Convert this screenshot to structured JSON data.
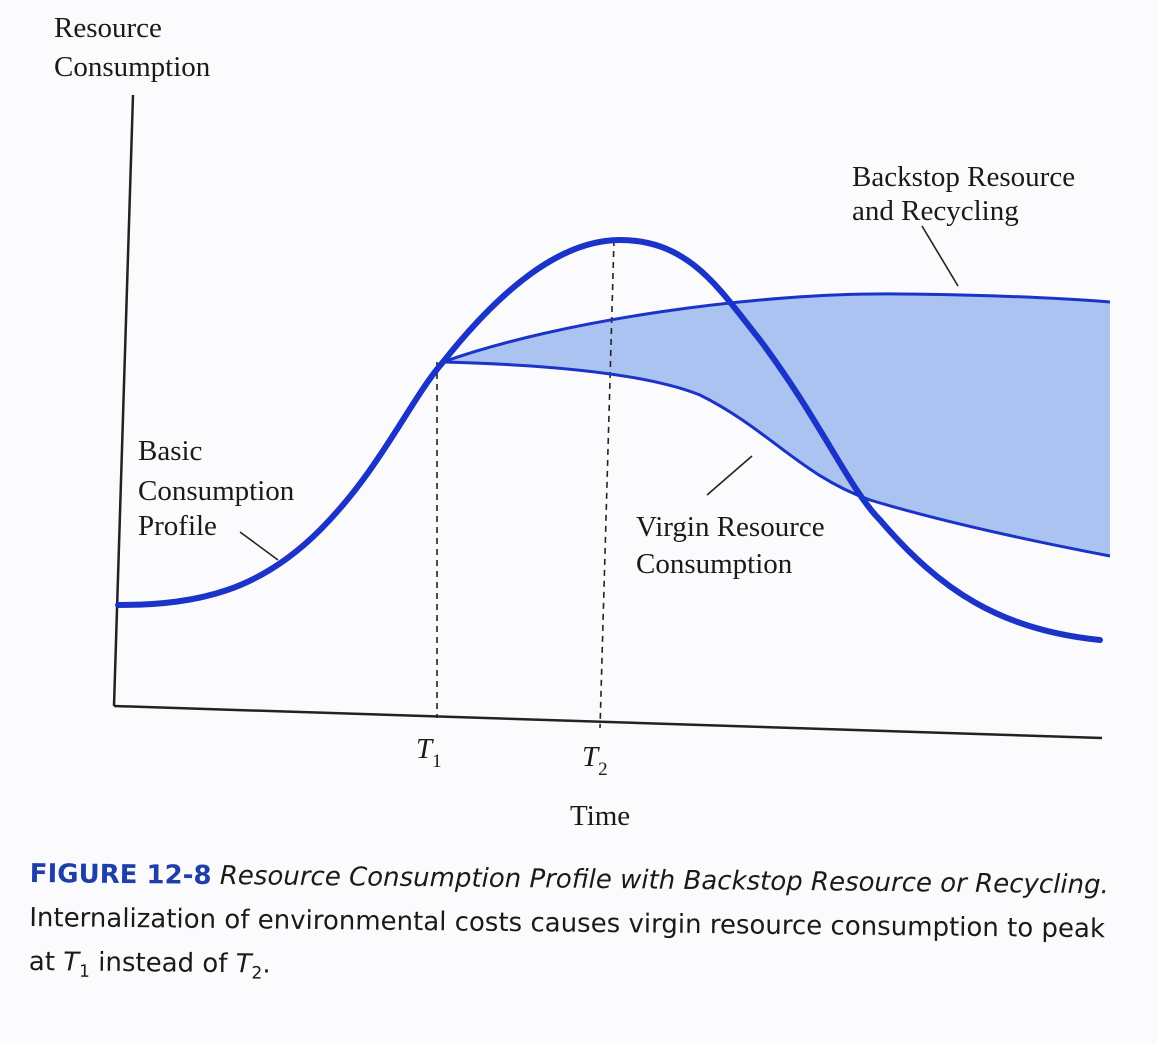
{
  "y_axis_label": [
    "Resource",
    "Consumption"
  ],
  "x_axis_label": "Time",
  "markers": [
    {
      "base": "T",
      "sub": "1"
    },
    {
      "base": "T",
      "sub": "2"
    }
  ],
  "annotations": {
    "backstop": [
      "Backstop Resource",
      "and Recycling"
    ],
    "basic": [
      "Basic",
      "Consumption",
      "Profile"
    ],
    "virgin": [
      "Virgin Resource",
      "Consumption"
    ]
  },
  "caption": {
    "label": "FIGURE 12-8",
    "title": "Resource Consumption Profile with Backstop Resource or Recycling.",
    "text": [
      "Internalization of environmental costs causes virgin resource consumption to peak at",
      "instead of",
      "."
    ]
  }
}
